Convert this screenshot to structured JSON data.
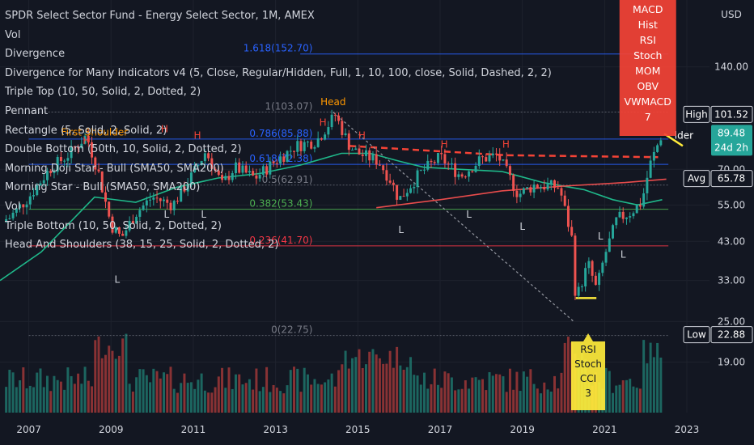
{
  "header": {
    "title": "SPDR Select Sector Fund - Energy Select Sector, 1M, AMEX",
    "indicators": [
      "Vol",
      "Divergence",
      "Divergence for Many Indicators v4 (5, Close, Regular/Hidden, Full, 1, 10, 100, close, Solid, Dashed, 2, 2)",
      "Triple Top (10, 50, Solid, 2, Dotted, 2)",
      "Pennant",
      "Rectangle (5, Solid, 2, Solid, 2)",
      "Double Bottom (50th, 10, Solid, 2, Dotted, 2)",
      "Morning Doji Star - Bull (SMA50, SMA200)",
      "Morning Star - Bull (SMA50, SMA200)",
      "Vol",
      "Triple Bottom (10, 50, Solid, 2, Dotted, 2)",
      "Head And Shoulders (38, 15, 25, Solid, 2, Dotted, 2)"
    ]
  },
  "colors": {
    "background": "#131722",
    "up": "#26a69a",
    "down": "#ef5350",
    "vol_up": "#1f7a70",
    "vol_down": "#a83a3a",
    "ma_green": "#1fb88a",
    "ma_red": "#e84c4c",
    "fib_blue": "#2962ff",
    "fib_green": "#4caf50",
    "fib_red": "#f23645",
    "fib_gray": "#787b86",
    "label_orange": "#ff9800",
    "label_yellow": "#ffeb3b",
    "label_red": "#f44336",
    "text": "#d1d4dc"
  },
  "chart_data": {
    "type": "candlestick",
    "price_scale_label": "USD",
    "y_scale": "log",
    "y_ticks": [
      19.0,
      25.0,
      33.0,
      43.0,
      55.0,
      70.0,
      89.48,
      101.52,
      140.0
    ],
    "y_tick_labels": [
      "19.00",
      "25.00",
      "33.00",
      "43.00",
      "55.00",
      "70.00",
      "",
      "",
      "140.00"
    ],
    "x_ticks": [
      "2007",
      "2009",
      "2011",
      "2013",
      "2015",
      "2017",
      "2019",
      "2021",
      "2023"
    ],
    "x_tick_years": [
      2007,
      2009,
      2011,
      2013,
      2015,
      2017,
      2019,
      2021,
      2023
    ],
    "x_range": [
      2006.3,
      2023.55
    ],
    "price_anchors": [
      [
        2006.5,
        50
      ],
      [
        2007.0,
        58
      ],
      [
        2007.5,
        70
      ],
      [
        2008.0,
        78
      ],
      [
        2008.4,
        88
      ],
      [
        2008.7,
        68
      ],
      [
        2009.0,
        48
      ],
      [
        2009.25,
        44
      ],
      [
        2009.6,
        52
      ],
      [
        2010.0,
        58
      ],
      [
        2010.5,
        55
      ],
      [
        2011.0,
        68
      ],
      [
        2011.3,
        79
      ],
      [
        2011.7,
        63
      ],
      [
        2012.0,
        71
      ],
      [
        2012.5,
        66
      ],
      [
        2013.0,
        74
      ],
      [
        2013.5,
        82
      ],
      [
        2014.0,
        85
      ],
      [
        2014.45,
        101
      ],
      [
        2014.8,
        82
      ],
      [
        2015.0,
        78
      ],
      [
        2015.5,
        74
      ],
      [
        2015.8,
        65
      ],
      [
        2016.0,
        57
      ],
      [
        2016.5,
        68
      ],
      [
        2017.0,
        76
      ],
      [
        2017.5,
        67
      ],
      [
        2018.0,
        75
      ],
      [
        2018.4,
        77
      ],
      [
        2018.9,
        59
      ],
      [
        2019.3,
        63
      ],
      [
        2019.9,
        62
      ],
      [
        2020.2,
        44
      ],
      [
        2020.3,
        29
      ],
      [
        2020.6,
        37
      ],
      [
        2020.8,
        31
      ],
      [
        2021.0,
        39
      ],
      [
        2021.3,
        50
      ],
      [
        2021.6,
        52
      ],
      [
        2021.9,
        56
      ],
      [
        2022.1,
        72
      ],
      [
        2022.4,
        89.5
      ]
    ],
    "ma_series": [
      {
        "color_key": "ma_green",
        "points": [
          [
            2006.3,
            33
          ],
          [
            2007.3,
            40
          ],
          [
            2008.6,
            58
          ],
          [
            2009.6,
            56
          ],
          [
            2010.6,
            62
          ],
          [
            2011.6,
            66
          ],
          [
            2012.6,
            68
          ],
          [
            2013.6,
            72
          ],
          [
            2014.6,
            78
          ],
          [
            2015.3,
            78
          ],
          [
            2016.0,
            74
          ],
          [
            2016.6,
            71
          ],
          [
            2017.5,
            70
          ],
          [
            2018.5,
            69
          ],
          [
            2019.5,
            64
          ],
          [
            2020.5,
            61
          ],
          [
            2021.2,
            57
          ],
          [
            2021.8,
            55
          ],
          [
            2022.4,
            57
          ]
        ]
      },
      {
        "color_key": "ma_red",
        "points": [
          [
            2015.45,
            54
          ],
          [
            2017.0,
            57
          ],
          [
            2018.5,
            60.5
          ],
          [
            2020.0,
            62.5
          ],
          [
            2021.5,
            64
          ],
          [
            2022.5,
            65.5
          ]
        ]
      }
    ],
    "fib_levels": [
      {
        "label": "1.618(152.70)",
        "value": 152.7,
        "color_key": "fib_blue"
      },
      {
        "label": "1(103.07)",
        "value": 103.07,
        "color_key": "fib_gray"
      },
      {
        "label": "0.786(85.88)",
        "value": 85.88,
        "color_key": "fib_blue"
      },
      {
        "label": "0.618(72.38)",
        "value": 72.38,
        "color_key": "fib_blue"
      },
      {
        "label": "0.5(62.91)",
        "value": 62.91,
        "color_key": "fib_gray"
      },
      {
        "label": "0.382(53.43)",
        "value": 53.43,
        "color_key": "fib_green"
      },
      {
        "label": "0.236(41.70)",
        "value": 41.7,
        "color_key": "fib_red"
      },
      {
        "label": "0(22.75)",
        "value": 22.75,
        "color_key": "fib_gray"
      }
    ],
    "fib_x_range": [
      2007.0,
      2022.55
    ],
    "price_tags": [
      {
        "label": "High",
        "value": "101.52",
        "price": 101.52
      },
      {
        "label": "",
        "value": "89.48",
        "sub": "24d 2h",
        "price": 89.48
      },
      {
        "label": "Avg",
        "value": "65.78",
        "price": 65.78
      },
      {
        "label": "Low",
        "value": "22.88",
        "price": 22.88
      }
    ],
    "pattern_labels": [
      {
        "text": "Head",
        "x": 2014.4,
        "price": 108,
        "color_key": "label_orange"
      },
      {
        "text": "First Shoulder",
        "x": 2008.6,
        "price": 88,
        "color_key": "label_orange"
      },
      {
        "text": "H",
        "x": 2008.4,
        "price": 83,
        "color_key": "label_red"
      },
      {
        "text": "H",
        "x": 2010.3,
        "price": 90,
        "color_key": "label_red"
      },
      {
        "text": "H",
        "x": 2011.1,
        "price": 86,
        "color_key": "label_red"
      },
      {
        "text": "H",
        "x": 2014.15,
        "price": 94,
        "color_key": "label_red"
      },
      {
        "text": "H",
        "x": 2015.1,
        "price": 86,
        "color_key": "label_red"
      },
      {
        "text": "H",
        "x": 2017.1,
        "price": 81,
        "color_key": "label_red"
      },
      {
        "text": "H",
        "x": 2018.6,
        "price": 81,
        "color_key": "label_red"
      },
      {
        "text": "L",
        "x": 2009.15,
        "price": 32.5,
        "color_key": "text"
      },
      {
        "text": "L",
        "x": 2010.35,
        "price": 50.5,
        "color_key": "text"
      },
      {
        "text": "L",
        "x": 2011.25,
        "price": 50.5,
        "color_key": "text"
      },
      {
        "text": "L",
        "x": 2016.05,
        "price": 45.5,
        "color_key": "text"
      },
      {
        "text": "L",
        "x": 2017.7,
        "price": 50.5,
        "color_key": "text"
      },
      {
        "text": "L",
        "x": 2019.0,
        "price": 46.5,
        "color_key": "text"
      },
      {
        "text": "L",
        "x": 2021.45,
        "price": 38.5,
        "color_key": "text"
      },
      {
        "text": "L",
        "x": 2020.9,
        "price": 43.5,
        "color_key": "text"
      }
    ],
    "divergence_box_top": {
      "lines": [
        "MACD",
        "Hist",
        "RSI",
        "Stoch",
        "MOM",
        "OBV",
        "VWMACD",
        "7"
      ],
      "color_key": "label_red"
    },
    "divergence_box_bottom": {
      "lines": [
        "RSI",
        "Stoch",
        "CCI",
        "3"
      ],
      "color_key": "label_yellow"
    },
    "pennant_label": "lder",
    "volume": {
      "note": "monthly volume bars"
    }
  }
}
